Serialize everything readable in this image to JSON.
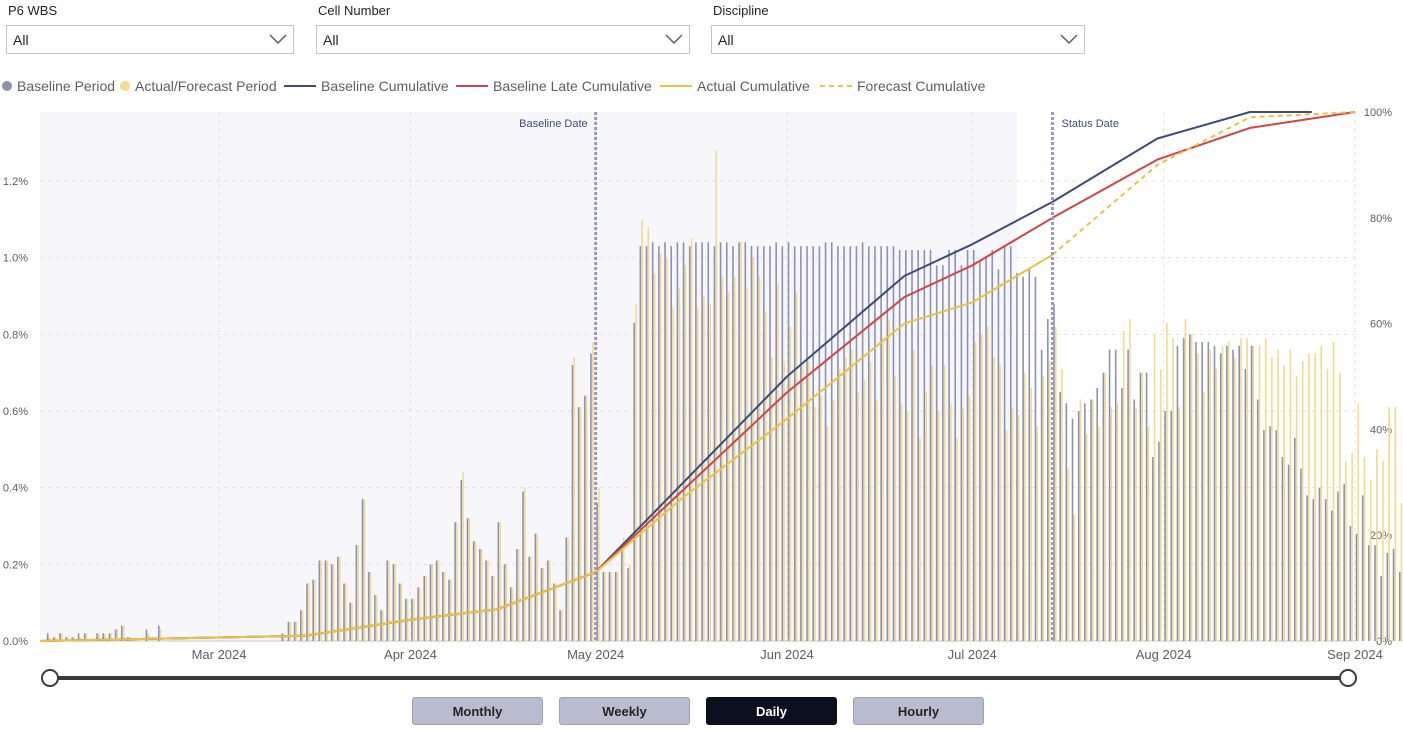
{
  "filters": [
    {
      "label": "P6 WBS",
      "value": "All"
    },
    {
      "label": "Cell Number",
      "value": "All"
    },
    {
      "label": "Discipline",
      "value": "All"
    }
  ],
  "legend": [
    {
      "label": "Baseline Period",
      "kind": "dot",
      "color": "#8e92b2"
    },
    {
      "label": "Actual/Forecast Period",
      "kind": "dot",
      "color": "#f3db8c"
    },
    {
      "label": "Baseline Cumulative",
      "kind": "line",
      "color": "#3e4c79"
    },
    {
      "label": "Baseline Late Cumulative",
      "kind": "line",
      "color": "#d04545"
    },
    {
      "label": "Actual Cumulative",
      "kind": "line",
      "color": "#e9c443"
    },
    {
      "label": "Forecast Cumulative",
      "kind": "dash",
      "color": "#e9c443"
    }
  ],
  "buttons": [
    {
      "label": "Monthly",
      "active": false
    },
    {
      "label": "Weekly",
      "active": false
    },
    {
      "label": "Daily",
      "active": true
    },
    {
      "label": "Hourly",
      "active": false
    }
  ],
  "chart_data": {
    "type": "bar",
    "x_ticks": [
      "Mar 2024",
      "Apr 2024",
      "May 2024",
      "Jun 2024",
      "Jul 2024",
      "Aug 2024",
      "Sep 2024"
    ],
    "y_left_ticks": [
      "0.0%",
      "0.2%",
      "0.4%",
      "0.6%",
      "0.8%",
      "1.0%",
      "1.2%"
    ],
    "y_right_ticks": [
      "0%",
      "20%",
      "40%",
      "60%",
      "80%",
      "100%"
    ],
    "y_left_range_pct": [
      0,
      1.38
    ],
    "y_right_range_pct": [
      0,
      100
    ],
    "x_range": [
      "2024-02-01",
      "2024-09-01"
    ],
    "annotations": [
      {
        "label": "Baseline Date",
        "date": "2024-05-01"
      },
      {
        "label": "Status Date",
        "date": "2024-07-14"
      }
    ],
    "series": [
      {
        "name": "Baseline Period",
        "type": "bar",
        "note": "daily values in % by date, from 2024-02-01",
        "start_date": "2024-02-01",
        "values": [
          0,
          0.02,
          0.01,
          0.02,
          0.01,
          0.01,
          0.02,
          0.02,
          0,
          0.02,
          0.02,
          0.02,
          0.03,
          0.04,
          0.01,
          0,
          0,
          0.03,
          0,
          0.04,
          0,
          0,
          0,
          0,
          0,
          0,
          0,
          0,
          0,
          0,
          0,
          0,
          0,
          0,
          0,
          0,
          0,
          0,
          0,
          0.02,
          0.05,
          0.05,
          0.08,
          0.15,
          0.16,
          0.21,
          0.21,
          0.2,
          0.22,
          0.15,
          0.1,
          0.25,
          0.37,
          0.18,
          0.12,
          0.08,
          0.21,
          0.2,
          0.15,
          0.11,
          0.11,
          0.14,
          0.17,
          0.2,
          0.21,
          0.18,
          0.16,
          0.31,
          0.42,
          0.32,
          0.26,
          0.24,
          0.21,
          0.17,
          0.31,
          0.2,
          0.14,
          0.24,
          0.39,
          0.22,
          0.28,
          0.19,
          0.21,
          0.15,
          0.08,
          0.27,
          0.72,
          0.61,
          0.64,
          0.75,
          0.36,
          0.18,
          0.18,
          0.18,
          0.24,
          0.19,
          0.83,
          1.03,
          1.03,
          1.04,
          1.03,
          1.04,
          1.03,
          1.04,
          1.04,
          1.03,
          1.04,
          1.04,
          1.04,
          1.03,
          1.04,
          1.04,
          1.03,
          1.04,
          1.04,
          1.03,
          1.03,
          1.03,
          1.03,
          1.04,
          1.03,
          1.04,
          1.03,
          1.03,
          1.03,
          1.03,
          1.03,
          1.04,
          1.04,
          1.03,
          1.03,
          1.03,
          1.03,
          1.04,
          1.03,
          1.03,
          1.03,
          1.03,
          1.03,
          1.02,
          1.02,
          1.02,
          1.02,
          1.02,
          1.02,
          0.98,
          0.98,
          1.02,
          1.02,
          0.98,
          1.02,
          1.02,
          0.99,
          1.0,
          1.02,
          0.97,
          1.03,
          1.03,
          0.96,
          0.95,
          0.97,
          0.95,
          0.76,
          0.84,
          0.88,
          0.65,
          0.62,
          0.58,
          0.6,
          0.62,
          0.63,
          0.66,
          0.7,
          0.76,
          0.76,
          0.66,
          0.76,
          0.63,
          0.7,
          0.7,
          0.48,
          0.52,
          0.6,
          0.6,
          0.77,
          0.79,
          0.8,
          0.78,
          0.78,
          0.78,
          0.77,
          0.75,
          0.77,
          0.76,
          0.77,
          0.71,
          0.77,
          0.63,
          0.55,
          0.56,
          0.55,
          0.48,
          0.46,
          0.53,
          0.45,
          0.38,
          0.37,
          0.4,
          0.37,
          0.34,
          0.39,
          0.41,
          0.3,
          0.28,
          0.38,
          0.25,
          0.25,
          0.17,
          0.23,
          0.24,
          0.18,
          0.2,
          0.1,
          0.07,
          0.07,
          0.06,
          0,
          0,
          0,
          0,
          0,
          0,
          0,
          0,
          0,
          0,
          0,
          0,
          0,
          0,
          0,
          0,
          0,
          0,
          0,
          0,
          0,
          0,
          0
        ]
      },
      {
        "name": "Actual/Forecast Period",
        "type": "bar",
        "note": "daily values in % by date, from 2024-02-01",
        "start_date": "2024-02-01",
        "values": [
          0,
          0.01,
          0.01,
          0.02,
          0.01,
          0.01,
          0.01,
          0.02,
          0,
          0.02,
          0.02,
          0.02,
          0.03,
          0.04,
          0.01,
          0,
          0,
          0.02,
          0,
          0.03,
          0,
          0,
          0,
          0,
          0,
          0,
          0,
          0,
          0,
          0,
          0,
          0,
          0,
          0,
          0,
          0,
          0,
          0,
          0,
          0.02,
          0.05,
          0.05,
          0.08,
          0.15,
          0.16,
          0.21,
          0.21,
          0.2,
          0.22,
          0.15,
          0.1,
          0.25,
          0.37,
          0.18,
          0.12,
          0.08,
          0.21,
          0.2,
          0.15,
          0.11,
          0.11,
          0.14,
          0.17,
          0.2,
          0.21,
          0.18,
          0.16,
          0.31,
          0.44,
          0.32,
          0.26,
          0.24,
          0.21,
          0.17,
          0.31,
          0.2,
          0.14,
          0.24,
          0.4,
          0.22,
          0.28,
          0.19,
          0.21,
          0.15,
          0.08,
          0.27,
          0.74,
          0.61,
          0.64,
          0.78,
          0.4,
          0.18,
          0.18,
          0.18,
          0.27,
          0.2,
          0.88,
          1.1,
          1.08,
          0.96,
          1.01,
          1.0,
          0.87,
          0.92,
          0.98,
          1.05,
          0.87,
          0.9,
          0.88,
          1.28,
          0.95,
          0.91,
          0.95,
          1.04,
          0.92,
          1.0,
          0.95,
          0.86,
          0.74,
          0.93,
          0.73,
          0.82,
          0.91,
          0.72,
          0.73,
          0.61,
          0.64,
          0.56,
          0.63,
          0.71,
          0.74,
          0.76,
          0.65,
          0.68,
          0.73,
          0.63,
          0.79,
          0.84,
          0.69,
          0.62,
          0.6,
          0.76,
          0.53,
          0.65,
          0.72,
          0.6,
          0.72,
          0.62,
          0.53,
          0.61,
          0.64,
          0.78,
          0.8,
          0.82,
          0.74,
          0.72,
          0.55,
          0.61,
          0.59,
          0.7,
          0.66,
          0.56,
          0.69,
          0.73,
          0.82,
          0.71,
          0.45,
          0.33,
          0.63,
          0.54,
          0.63,
          0.56,
          0.7,
          0.61,
          0.62,
          0.81,
          0.84,
          0.61,
          0.7,
          0.56,
          0.8,
          0.71,
          0.83,
          0.79,
          0.61,
          0.84,
          0.8,
          0.75,
          0.65,
          0.76,
          0.71,
          0.77,
          0.78,
          0.74,
          0.79,
          0.79,
          0.77,
          0.77,
          0.79,
          0.74,
          0.76,
          0.72,
          0.76,
          0.69,
          0.73,
          0.75,
          0.75,
          0.77,
          0.71,
          0.78,
          0.7,
          0.47,
          0.49,
          0.62,
          0.48,
          0.42,
          0.5,
          0.47,
          0.61,
          0.61,
          0.36,
          0.3,
          0.22,
          0.25,
          0.2,
          0.22,
          0.18,
          0.29,
          0.28,
          0.1,
          0.07,
          0.07,
          0.09,
          0.09,
          0.09,
          0.09,
          0.09,
          0,
          0,
          0,
          0,
          0,
          0,
          0,
          0
        ]
      },
      {
        "name": "Baseline Cumulative",
        "type": "line",
        "points": [
          [
            "2024-02-01",
            0
          ],
          [
            "2024-03-15",
            1
          ],
          [
            "2024-04-01",
            4
          ],
          [
            "2024-04-15",
            6
          ],
          [
            "2024-05-01",
            13
          ],
          [
            "2024-06-01",
            50
          ],
          [
            "2024-06-20",
            69
          ],
          [
            "2024-07-01",
            75
          ],
          [
            "2024-07-14",
            83
          ],
          [
            "2024-07-31",
            95
          ],
          [
            "2024-08-15",
            100
          ],
          [
            "2024-08-25",
            100
          ]
        ]
      },
      {
        "name": "Baseline Late Cumulative",
        "type": "line",
        "points": [
          [
            "2024-02-01",
            0
          ],
          [
            "2024-03-15",
            1
          ],
          [
            "2024-04-01",
            4
          ],
          [
            "2024-04-15",
            6
          ],
          [
            "2024-05-01",
            13
          ],
          [
            "2024-06-01",
            47
          ],
          [
            "2024-06-20",
            65
          ],
          [
            "2024-07-01",
            71
          ],
          [
            "2024-07-14",
            80
          ],
          [
            "2024-07-31",
            91
          ],
          [
            "2024-08-15",
            97
          ],
          [
            "2024-09-01",
            100
          ]
        ]
      },
      {
        "name": "Actual Cumulative",
        "type": "line",
        "points": [
          [
            "2024-02-01",
            0
          ],
          [
            "2024-03-15",
            1
          ],
          [
            "2024-04-01",
            4
          ],
          [
            "2024-04-15",
            6
          ],
          [
            "2024-05-01",
            13
          ],
          [
            "2024-05-15",
            27
          ],
          [
            "2024-06-01",
            42
          ],
          [
            "2024-06-20",
            60
          ],
          [
            "2024-07-01",
            64
          ],
          [
            "2024-07-14",
            73
          ]
        ]
      },
      {
        "name": "Forecast Cumulative",
        "type": "dash",
        "points": [
          [
            "2024-07-14",
            73
          ],
          [
            "2024-07-31",
            90
          ],
          [
            "2024-08-15",
            99
          ],
          [
            "2024-09-01",
            100
          ]
        ]
      }
    ]
  }
}
